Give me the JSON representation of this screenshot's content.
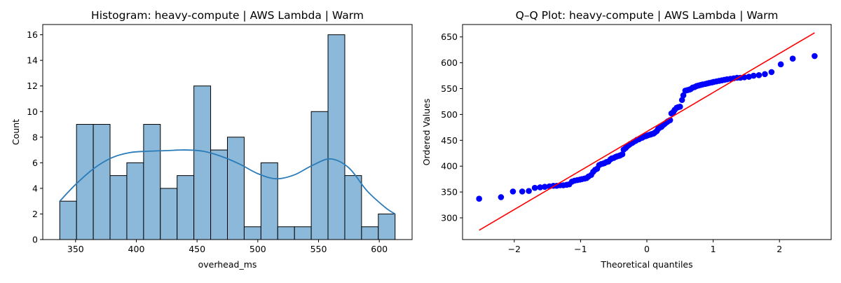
{
  "chart_data": [
    {
      "type": "bar",
      "subtype": "histogram",
      "title": "Histogram: heavy-compute | AWS Lambda | Warm",
      "xlabel": "overhead_ms",
      "ylabel": "Count",
      "xlim": [
        323,
        627
      ],
      "ylim": [
        0,
        16.8
      ],
      "xticks": [
        350,
        400,
        450,
        500,
        550,
        600
      ],
      "yticks": [
        0,
        2,
        4,
        6,
        8,
        10,
        12,
        14,
        16
      ],
      "bins": [
        {
          "start": 337.0,
          "end": 350.8,
          "count": 3
        },
        {
          "start": 350.8,
          "end": 364.6,
          "count": 9
        },
        {
          "start": 364.6,
          "end": 378.4,
          "count": 9
        },
        {
          "start": 378.4,
          "end": 392.2,
          "count": 5
        },
        {
          "start": 392.2,
          "end": 406.0,
          "count": 6
        },
        {
          "start": 406.0,
          "end": 419.8,
          "count": 9
        },
        {
          "start": 419.8,
          "end": 433.6,
          "count": 4
        },
        {
          "start": 433.6,
          "end": 447.4,
          "count": 5
        },
        {
          "start": 447.4,
          "end": 461.2,
          "count": 12
        },
        {
          "start": 461.2,
          "end": 475.0,
          "count": 7
        },
        {
          "start": 475.0,
          "end": 488.8,
          "count": 8
        },
        {
          "start": 488.8,
          "end": 502.6,
          "count": 1
        },
        {
          "start": 502.6,
          "end": 516.4,
          "count": 6
        },
        {
          "start": 516.4,
          "end": 530.2,
          "count": 1
        },
        {
          "start": 530.2,
          "end": 544.0,
          "count": 1
        },
        {
          "start": 544.0,
          "end": 557.8,
          "count": 10
        },
        {
          "start": 557.8,
          "end": 571.6,
          "count": 16
        },
        {
          "start": 571.6,
          "end": 585.4,
          "count": 5
        },
        {
          "start": 585.4,
          "end": 599.2,
          "count": 1
        },
        {
          "start": 599.2,
          "end": 613.0,
          "count": 2
        }
      ],
      "kde": {
        "x": [
          337,
          350,
          365,
          380,
          395,
          410,
          425,
          440,
          455,
          470,
          485,
          500,
          515,
          530,
          545,
          560,
          575,
          590,
          605,
          613
        ],
        "y": [
          3.0,
          4.3,
          5.55,
          6.4,
          6.8,
          6.9,
          6.95,
          7.0,
          6.9,
          6.5,
          5.9,
          5.15,
          4.75,
          5.05,
          5.8,
          6.3,
          5.6,
          3.8,
          2.5,
          2.0
        ]
      },
      "color": "#8cb9d9",
      "kde_color": "#2b7bb9",
      "grid": false
    },
    {
      "type": "scatter",
      "subtype": "qq-plot",
      "title": "Q–Q Plot: heavy-compute | AWS Lambda | Warm",
      "xlabel": "Theoretical quantiles",
      "ylabel": "Ordered Values",
      "xlim": [
        -2.78,
        2.78
      ],
      "ylim": [
        258,
        674
      ],
      "xticks": [
        -2,
        -1,
        0,
        1,
        2
      ],
      "yticks": [
        300,
        350,
        400,
        450,
        500,
        550,
        600,
        650
      ],
      "points": [
        [
          -2.53,
          337
        ],
        [
          -2.2,
          340
        ],
        [
          -2.02,
          351
        ],
        [
          -1.88,
          351
        ],
        [
          -1.78,
          352
        ],
        [
          -1.69,
          358
        ],
        [
          -1.61,
          359
        ],
        [
          -1.54,
          360
        ],
        [
          -1.47,
          361
        ],
        [
          -1.41,
          362
        ],
        [
          -1.36,
          362
        ],
        [
          -1.31,
          363
        ],
        [
          -1.26,
          363
        ],
        [
          -1.21,
          364
        ],
        [
          -1.17,
          365
        ],
        [
          -1.13,
          370
        ],
        [
          -1.09,
          372
        ],
        [
          -1.05,
          373
        ],
        [
          -1.01,
          374
        ],
        [
          -0.98,
          375
        ],
        [
          -0.94,
          376
        ],
        [
          -0.91,
          377
        ],
        [
          -0.88,
          380
        ],
        [
          -0.84,
          383
        ],
        [
          -0.81,
          389
        ],
        [
          -0.78,
          393
        ],
        [
          -0.75,
          395
        ],
        [
          -0.72,
          402
        ],
        [
          -0.69,
          404
        ],
        [
          -0.66,
          405
        ],
        [
          -0.64,
          406
        ],
        [
          -0.61,
          408
        ],
        [
          -0.58,
          409
        ],
        [
          -0.55,
          413
        ],
        [
          -0.53,
          415
        ],
        [
          -0.5,
          416
        ],
        [
          -0.47,
          418
        ],
        [
          -0.45,
          419
        ],
        [
          -0.42,
          420
        ],
        [
          -0.4,
          421
        ],
        [
          -0.37,
          423
        ],
        [
          -0.35,
          432
        ],
        [
          -0.32,
          435
        ],
        [
          -0.3,
          438
        ],
        [
          -0.27,
          441
        ],
        [
          -0.25,
          443
        ],
        [
          -0.22,
          445
        ],
        [
          -0.2,
          447
        ],
        [
          -0.17,
          449
        ],
        [
          -0.15,
          451
        ],
        [
          -0.12,
          452
        ],
        [
          -0.1,
          454
        ],
        [
          -0.07,
          455
        ],
        [
          -0.05,
          457
        ],
        [
          -0.02,
          458
        ],
        [
          0.0,
          459
        ],
        [
          0.02,
          460
        ],
        [
          0.05,
          461
        ],
        [
          0.07,
          462
        ],
        [
          0.1,
          463
        ],
        [
          0.12,
          465
        ],
        [
          0.15,
          468
        ],
        [
          0.17,
          472
        ],
        [
          0.2,
          475
        ],
        [
          0.22,
          476
        ],
        [
          0.25,
          480
        ],
        [
          0.27,
          482
        ],
        [
          0.3,
          485
        ],
        [
          0.32,
          487
        ],
        [
          0.35,
          489
        ],
        [
          0.37,
          502
        ],
        [
          0.4,
          505
        ],
        [
          0.42,
          509
        ],
        [
          0.45,
          513
        ],
        [
          0.47,
          514
        ],
        [
          0.5,
          515
        ],
        [
          0.53,
          528
        ],
        [
          0.55,
          537
        ],
        [
          0.58,
          546
        ],
        [
          0.61,
          547
        ],
        [
          0.64,
          548
        ],
        [
          0.66,
          549
        ],
        [
          0.69,
          552
        ],
        [
          0.72,
          553
        ],
        [
          0.75,
          555
        ],
        [
          0.78,
          556
        ],
        [
          0.81,
          557
        ],
        [
          0.84,
          558
        ],
        [
          0.88,
          559
        ],
        [
          0.91,
          560
        ],
        [
          0.94,
          561
        ],
        [
          0.98,
          562
        ],
        [
          1.01,
          563
        ],
        [
          1.05,
          564
        ],
        [
          1.09,
          565
        ],
        [
          1.13,
          566
        ],
        [
          1.17,
          567
        ],
        [
          1.21,
          568
        ],
        [
          1.26,
          569
        ],
        [
          1.31,
          570
        ],
        [
          1.36,
          571
        ],
        [
          1.41,
          571
        ],
        [
          1.47,
          572
        ],
        [
          1.54,
          573
        ],
        [
          1.61,
          575
        ],
        [
          1.69,
          576
        ],
        [
          1.78,
          578
        ],
        [
          1.88,
          582
        ],
        [
          2.02,
          597
        ],
        [
          2.2,
          608
        ],
        [
          2.53,
          613
        ]
      ],
      "fit_line": {
        "x": [
          -2.53,
          2.53
        ],
        "y": [
          276,
          658
        ]
      },
      "point_color": "#0000ff",
      "line_color": "#ff0000",
      "grid": false
    }
  ]
}
